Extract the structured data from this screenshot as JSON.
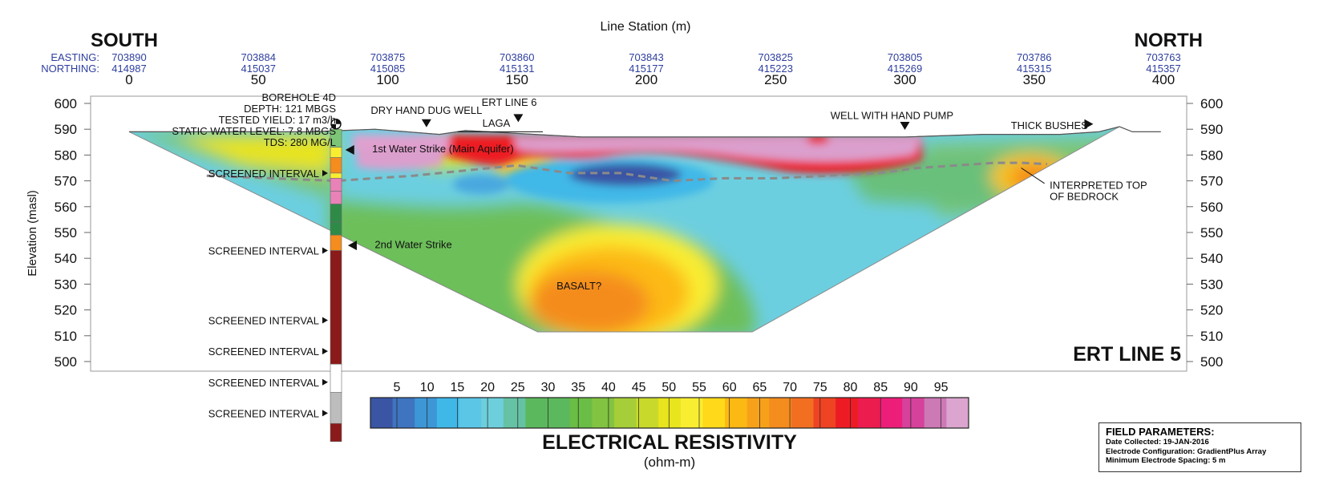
{
  "chart_data": {
    "type": "heatmap",
    "title": "ERT LINE 5",
    "xlabel": "Line Station (m)",
    "ylabel": "Elevation (masl)",
    "xlim": [
      0,
      400
    ],
    "ylim": [
      500,
      600
    ],
    "x_ticks": [
      0,
      50,
      100,
      150,
      200,
      250,
      300,
      350,
      400
    ],
    "y_ticks": [
      600,
      590,
      580,
      570,
      560,
      550,
      540,
      530,
      520,
      510,
      500
    ],
    "direction_left": "SOUTH",
    "direction_right": "NORTH",
    "easting_label": "EASTING:",
    "northing_label": "NORTHING:",
    "coordinates": [
      {
        "station": 0,
        "easting": "703890",
        "northing": "414987"
      },
      {
        "station": 50,
        "easting": "703884",
        "northing": "415037"
      },
      {
        "station": 100,
        "easting": "703875",
        "northing": "415085"
      },
      {
        "station": 150,
        "easting": "703860",
        "northing": "415131"
      },
      {
        "station": 200,
        "easting": "703843",
        "northing": "415177"
      },
      {
        "station": 250,
        "easting": "703825",
        "northing": "415223"
      },
      {
        "station": 300,
        "easting": "703805",
        "northing": "415269"
      },
      {
        "station": 350,
        "easting": "703786",
        "northing": "415315"
      },
      {
        "station": 400,
        "easting": "703763",
        "northing": "415357"
      }
    ],
    "colorbar": {
      "title": "ELECTRICAL RESISTIVITY",
      "unit": "(ohm-m)",
      "tick_labels": [
        "5",
        "10",
        "15",
        "20",
        "25",
        "30",
        "35",
        "40",
        "45",
        "50",
        "55",
        "60",
        "65",
        "70",
        "75",
        "80",
        "85",
        "90",
        "95"
      ],
      "colors": [
        "#3a55a4",
        "#3f74c0",
        "#3d97d7",
        "#3fb8e8",
        "#5cc6e6",
        "#6ecfdc",
        "#66c2a5",
        "#5cb85c",
        "#5cb85c",
        "#6abd45",
        "#82c341",
        "#a6ce39",
        "#c8d92b",
        "#e8e41d",
        "#f9ed32",
        "#ffd91a",
        "#fdb913",
        "#f7a11b",
        "#f48c1e",
        "#f26f21",
        "#ee4423",
        "#ed1c24",
        "#ec1c4e",
        "#ec1e79",
        "#d6419b",
        "#cc79b5",
        "#dba5cf"
      ]
    },
    "annotations": [
      {
        "station": 80,
        "elev": 601,
        "lines": [
          "BOREHOLE 4D",
          "DEPTH: 121 MBGS",
          "TESTED YIELD: 17 m3/h",
          "STATIC WATER LEVEL: 7.8 MBGS",
          "TDS: 280 MG/L"
        ]
      },
      {
        "station": 115,
        "elev": 596,
        "lines": [
          "DRY HAND DUG WELL"
        ]
      },
      {
        "station": 147,
        "elev": 599,
        "lines": [
          "ERT LINE 6"
        ]
      },
      {
        "station": 142,
        "elev": 591,
        "lines": [
          "LAGA"
        ]
      },
      {
        "station": 295,
        "elev": 594,
        "lines": [
          "WELL WITH HAND PUMP"
        ]
      },
      {
        "station": 341,
        "elev": 590,
        "lines": [
          "THICK BUSHES"
        ]
      },
      {
        "station": 94,
        "elev": 581,
        "lines": [
          "1st Water Strike (Main Aquifer)"
        ]
      },
      {
        "station": 95,
        "elev": 544,
        "lines": [
          "2nd Water Strike"
        ]
      },
      {
        "station": 174,
        "elev": 528,
        "lines": [
          "BASALT?"
        ]
      },
      {
        "station": 356,
        "elev": 567,
        "lines": [
          "INTERPRETED TOP",
          "OF BEDROCK"
        ]
      }
    ],
    "borehole_station": 80,
    "screened_intervals": [
      {
        "label": "SCREENED INTERVAL",
        "elev": 573
      },
      {
        "label": "SCREENED INTERVAL",
        "elev": 543
      },
      {
        "label": "SCREENED INTERVAL",
        "elev": 516
      },
      {
        "label": "SCREENED INTERVAL",
        "elev": 504
      },
      {
        "label": "SCREENED INTERVAL",
        "elev": 492
      },
      {
        "label": "SCREENED INTERVAL",
        "elev": 480
      }
    ],
    "borehole_log": [
      {
        "top": 590,
        "bottom": 583,
        "color": "#7cc576"
      },
      {
        "top": 583,
        "bottom": 579,
        "color": "#f9ed32"
      },
      {
        "top": 579,
        "bottom": 573,
        "color": "#f48c1e"
      },
      {
        "top": 573,
        "bottom": 571,
        "color": "#f9ed32"
      },
      {
        "top": 571,
        "bottom": 566,
        "color": "#e882b7"
      },
      {
        "top": 566,
        "bottom": 561,
        "color": "#e882b7"
      },
      {
        "top": 561,
        "bottom": 554,
        "color": "#2e8b47"
      },
      {
        "top": 554,
        "bottom": 549,
        "color": "#2e8b47"
      },
      {
        "top": 549,
        "bottom": 543,
        "color": "#f48c1e"
      },
      {
        "top": 543,
        "bottom": 499,
        "color": "#8b1a1a"
      },
      {
        "top": 499,
        "bottom": 488,
        "color": "#ffffff"
      },
      {
        "top": 488,
        "bottom": 476,
        "color": "#bdbdbd"
      },
      {
        "top": 476,
        "bottom": 469,
        "color": "#8b1a1a"
      }
    ],
    "ground_surface": [
      [
        0,
        589
      ],
      [
        30,
        589
      ],
      [
        70,
        589
      ],
      [
        95,
        590
      ],
      [
        120,
        588
      ],
      [
        130,
        589.5
      ],
      [
        175,
        587
      ],
      [
        250,
        587
      ],
      [
        300,
        587
      ],
      [
        330,
        588
      ],
      [
        360,
        588
      ],
      [
        375,
        589
      ],
      [
        383,
        591
      ],
      [
        388,
        589
      ],
      [
        399,
        589
      ]
    ],
    "bedrock_line": [
      [
        30,
        572
      ],
      [
        55,
        571
      ],
      [
        80,
        570
      ],
      [
        110,
        572
      ],
      [
        130,
        574
      ],
      [
        150,
        576
      ],
      [
        170,
        573
      ],
      [
        190,
        573
      ],
      [
        210,
        570
      ],
      [
        230,
        571
      ],
      [
        250,
        571
      ],
      [
        270,
        572
      ],
      [
        290,
        573
      ],
      [
        305,
        575
      ],
      [
        320,
        576
      ],
      [
        335,
        577
      ],
      [
        345,
        577
      ],
      [
        355,
        576.5
      ]
    ]
  },
  "field_parameters": {
    "title": "FIELD PARAMETERS:",
    "date_collected": "Date Collected: 19-JAN-2016",
    "electrode_configuration": "Electrode Configuration: GradientPlus Array",
    "min_spacing": "Minimum Electrode Spacing: 5 m"
  }
}
